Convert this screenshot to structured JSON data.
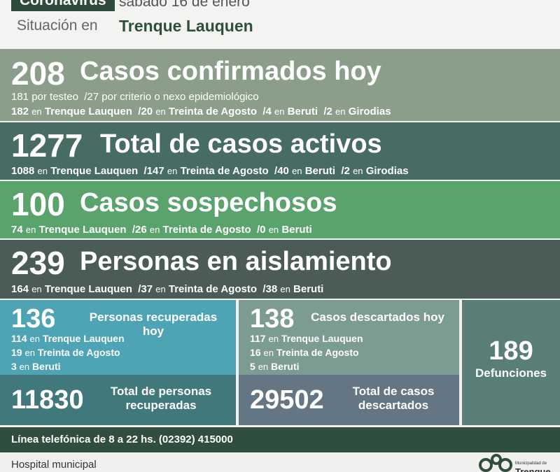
{
  "header": {
    "tag": "Coronavirus",
    "date": "sábado 16 de enero",
    "situacion_label": "Situación en",
    "city": "Trenque Lauquen"
  },
  "confirmados": {
    "number": "208",
    "title": "Casos confirmados hoy",
    "l1_a": "181",
    "l1_b": " por testeo",
    "l1_c": "/27",
    "l1_d": " por criterio o nexo epidemiológico",
    "l2": [
      {
        "n": "182",
        "en": "en",
        "place": "Trenque Lauquen"
      },
      {
        "n": "/20",
        "en": "en",
        "place": "Treinta de Agosto"
      },
      {
        "n": "/4",
        "en": "en",
        "place": "Beruti"
      },
      {
        "n": "/2",
        "en": "en",
        "place": "Girodias"
      }
    ]
  },
  "activos": {
    "number": "1277",
    "title": "Total de casos activos",
    "l": [
      {
        "n": "1088",
        "en": "en",
        "place": "Trenque Lauquen"
      },
      {
        "n": "/147",
        "en": "en",
        "place": "Treinta de Agosto"
      },
      {
        "n": "/40",
        "en": "en",
        "place": "Beruti"
      },
      {
        "n": "/2",
        "en": "en",
        "place": "Girodias"
      }
    ]
  },
  "sospechosos": {
    "number": "100",
    "title": "Casos sospechosos",
    "l": [
      {
        "n": "74",
        "en": "en",
        "place": "Trenque Lauquen"
      },
      {
        "n": "/26",
        "en": "en",
        "place": "Treinta de Agosto"
      },
      {
        "n": "/0",
        "en": "en",
        "place": "Beruti"
      }
    ]
  },
  "aislamiento": {
    "number": "239",
    "title": "Personas en aislamiento",
    "l": [
      {
        "n": "164",
        "en": "en",
        "place": "Trenque Lauquen"
      },
      {
        "n": "/37",
        "en": "en",
        "place": "Treinta de Agosto"
      },
      {
        "n": "/38",
        "en": "en",
        "place": "Beruti"
      }
    ]
  },
  "recuperadas": {
    "number": "136",
    "title_1": "Personas recuperadas",
    "title_2": "hoy",
    "rows": [
      {
        "n": "114",
        "en": "en",
        "place": "Trenque Lauquen"
      },
      {
        "n": "19",
        "en": "en",
        "place": "Treinta de Agosto"
      },
      {
        "n": "3",
        "en": "en",
        "place": "Beruti"
      }
    ],
    "total_number": "11830",
    "total_1": "Total de personas",
    "total_2": "recuperadas"
  },
  "descartados": {
    "number": "138",
    "title": "Casos descartados hoy",
    "rows": [
      {
        "n": "117",
        "en": "en",
        "place": "Trenque Lauquen"
      },
      {
        "n": "16",
        "en": "en",
        "place": "Treinta de Agosto"
      },
      {
        "n": "5",
        "en": "en",
        "place": "Beruti"
      }
    ],
    "total_number": "29502",
    "total_1": "Total de casos",
    "total_2": "descartados"
  },
  "defunciones": {
    "number": "189",
    "label": "Defunciones"
  },
  "footer": {
    "phone": "Línea telefónica de 8 a 22 hs. (02392) 415000",
    "hospital": "Hospital municipal",
    "logo_small": "Municipalidad de",
    "logo_big": "Trenque"
  }
}
